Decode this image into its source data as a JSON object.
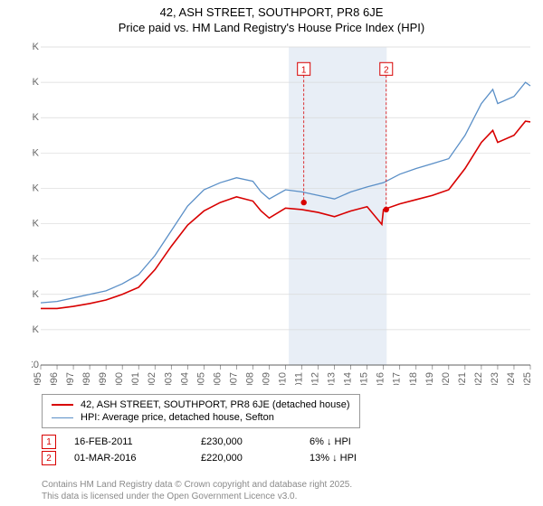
{
  "title_line1": "42, ASH STREET, SOUTHPORT, PR8 6JE",
  "title_line2": "Price paid vs. HM Land Registry's House Price Index (HPI)",
  "colors": {
    "red": "#d80000",
    "blue": "#5a8fc7",
    "grid": "#d9d9d9",
    "shade": "#e8eef6",
    "axis": "#666"
  },
  "y": {
    "min": 0,
    "max": 450000,
    "step": 50000,
    "prefix": "£",
    "suffix": "K",
    "divide": 1000
  },
  "x": {
    "start": 1995,
    "end": 2025,
    "step": 1
  },
  "legend": [
    {
      "style": "red",
      "label": "42, ASH STREET, SOUTHPORT, PR8 6JE (detached house)"
    },
    {
      "style": "blue",
      "label": "HPI: Average price, detached house, Sefton"
    }
  ],
  "shade": {
    "from": 2010.2,
    "to": 2016.2
  },
  "markers": [
    {
      "num": "1",
      "year": 2011.12,
      "price": 230000,
      "date": "16-FEB-2011",
      "delta": "6% ↓ HPI"
    },
    {
      "num": "2",
      "year": 2016.17,
      "price": 220000,
      "date": "01-MAR-2016",
      "delta": "13% ↓ HPI"
    }
  ],
  "marker_line_y": 410000,
  "series": {
    "blue": {
      "stroke": 1.3,
      "pts": [
        [
          1995,
          88
        ],
        [
          1996,
          90
        ],
        [
          1997,
          95
        ],
        [
          1998,
          100
        ],
        [
          1999,
          105
        ],
        [
          2000,
          115
        ],
        [
          2001,
          128
        ],
        [
          2002,
          155
        ],
        [
          2003,
          190
        ],
        [
          2004,
          225
        ],
        [
          2005,
          248
        ],
        [
          2006,
          258
        ],
        [
          2007,
          265
        ],
        [
          2008,
          260
        ],
        [
          2008.5,
          245
        ],
        [
          2009,
          235
        ],
        [
          2010,
          248
        ],
        [
          2011,
          245
        ],
        [
          2012,
          240
        ],
        [
          2013,
          235
        ],
        [
          2014,
          245
        ],
        [
          2015,
          252
        ],
        [
          2016,
          258
        ],
        [
          2017,
          270
        ],
        [
          2018,
          278
        ],
        [
          2019,
          285
        ],
        [
          2020,
          292
        ],
        [
          2021,
          325
        ],
        [
          2022,
          370
        ],
        [
          2022.7,
          390
        ],
        [
          2023,
          370
        ],
        [
          2024,
          380
        ],
        [
          2024.7,
          400
        ],
        [
          2025,
          395
        ]
      ]
    },
    "red": {
      "stroke": 1.6,
      "pts": [
        [
          1995,
          80
        ],
        [
          1996,
          80
        ],
        [
          1997,
          83
        ],
        [
          1998,
          87
        ],
        [
          1999,
          92
        ],
        [
          2000,
          100
        ],
        [
          2001,
          110
        ],
        [
          2002,
          135
        ],
        [
          2003,
          168
        ],
        [
          2004,
          198
        ],
        [
          2005,
          218
        ],
        [
          2006,
          230
        ],
        [
          2007,
          238
        ],
        [
          2008,
          232
        ],
        [
          2008.5,
          218
        ],
        [
          2009,
          208
        ],
        [
          2010,
          222
        ],
        [
          2011,
          220
        ],
        [
          2012,
          216
        ],
        [
          2013,
          210
        ],
        [
          2014,
          218
        ],
        [
          2015,
          224
        ],
        [
          2015.9,
          199
        ],
        [
          2016,
          220
        ],
        [
          2017,
          228
        ],
        [
          2018,
          234
        ],
        [
          2019,
          240
        ],
        [
          2020,
          248
        ],
        [
          2021,
          278
        ],
        [
          2022,
          315
        ],
        [
          2022.7,
          332
        ],
        [
          2023,
          315
        ],
        [
          2024,
          325
        ],
        [
          2024.7,
          345
        ],
        [
          2025,
          344
        ]
      ]
    }
  },
  "footer": [
    "Contains HM Land Registry data © Crown copyright and database right 2025.",
    "This data is licensed under the Open Government Licence v3.0."
  ]
}
